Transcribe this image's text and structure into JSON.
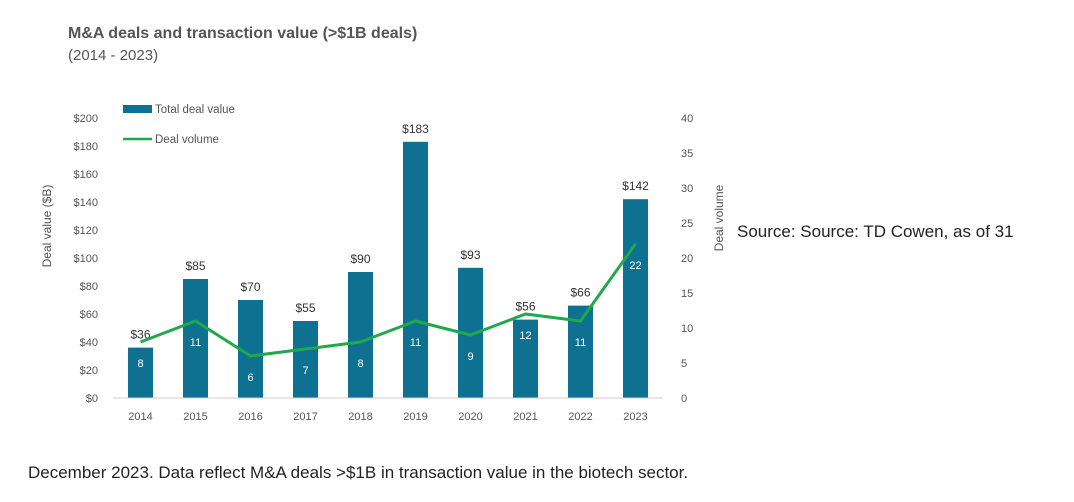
{
  "source_text": "Source: Source: TD Cowen, as of 31",
  "footnote_text": "December 2023. Data reflect M&A deals >$1B in transaction value in the biotech sector.",
  "colors": {
    "bar": "#0f7192",
    "line": "#21a84a",
    "text": "#555555"
  },
  "chart_data": {
    "type": "bar",
    "title": "M&A deals and transaction value (>$1B deals)",
    "subtitle": "(2014 - 2023)",
    "categories": [
      "2014",
      "2015",
      "2016",
      "2017",
      "2018",
      "2019",
      "2020",
      "2021",
      "2022",
      "2023"
    ],
    "series": [
      {
        "name": "Total deal value",
        "type": "bar",
        "axis": "left",
        "values": [
          36,
          85,
          70,
          55,
          90,
          183,
          93,
          56,
          66,
          142
        ],
        "labels": [
          "$36",
          "$85",
          "$70",
          "$55",
          "$90",
          "$183",
          "$93",
          "$56",
          "$66",
          "$142"
        ]
      },
      {
        "name": "Deal volume",
        "type": "line",
        "axis": "right",
        "values": [
          8,
          11,
          6,
          7,
          8,
          11,
          9,
          12,
          11,
          22
        ],
        "labels": [
          "8",
          "11",
          "6",
          "7",
          "8",
          "11",
          "9",
          "12",
          "11",
          "22"
        ]
      }
    ],
    "ylabel": "Deal value ($B)",
    "y2label": "Deal volume",
    "ylim": [
      0,
      200
    ],
    "y2lim": [
      0,
      40
    ],
    "yticks": [
      "$0",
      "$20",
      "$40",
      "$60",
      "$80",
      "$100",
      "$120",
      "$140",
      "$160",
      "$180",
      "$200"
    ],
    "y2ticks": [
      "0",
      "5",
      "10",
      "15",
      "20",
      "25",
      "30",
      "35",
      "40"
    ],
    "legend": {
      "position": "top-left",
      "items": [
        "Total deal value",
        "Deal volume"
      ]
    },
    "grid": false
  }
}
